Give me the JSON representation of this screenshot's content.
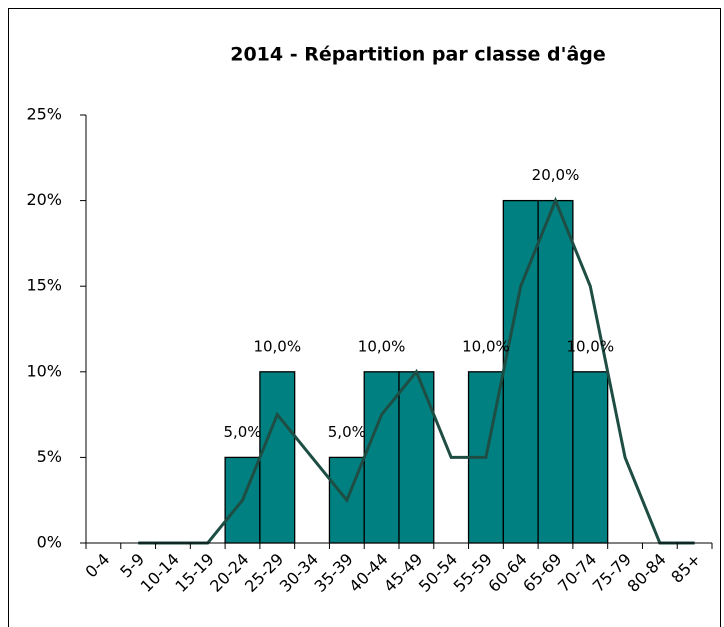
{
  "chart_data": {
    "type": "bar",
    "title": "2014 - Répartition par classe d'âge",
    "categories": [
      "0-4",
      "5-9",
      "10-14",
      "15-19",
      "20-24",
      "25-29",
      "30-34",
      "35-39",
      "40-44",
      "45-49",
      "50-54",
      "55-59",
      "60-64",
      "65-69",
      "70-74",
      "75-79",
      "80-84",
      "85+"
    ],
    "series": [
      {
        "type": "bar",
        "color": "#008080",
        "values": [
          0,
          0,
          0,
          0,
          5,
          10,
          0,
          5,
          10,
          10,
          0,
          10,
          20,
          20,
          10,
          0,
          0,
          0
        ],
        "value_labels": [
          null,
          null,
          null,
          null,
          "5,0%",
          "10,0%",
          null,
          "5,0%",
          "10,0%",
          null,
          null,
          "10,0%",
          null,
          "20,0%",
          "10,0%",
          null,
          null,
          null
        ]
      },
      {
        "type": "line",
        "color": "#1e4d44",
        "values": [
          null,
          0,
          0,
          0,
          2.5,
          7.5,
          5,
          2.5,
          7.5,
          10,
          5,
          5,
          15,
          20,
          15,
          5,
          0,
          0
        ]
      }
    ],
    "ylim": [
      0,
      25
    ],
    "yticks": [
      {
        "value": 0,
        "label": "0%"
      },
      {
        "value": 5,
        "label": "5%"
      },
      {
        "value": 10,
        "label": "10%"
      },
      {
        "value": 15,
        "label": "15%"
      },
      {
        "value": 20,
        "label": "20%"
      },
      {
        "value": 25,
        "label": "25%"
      }
    ]
  }
}
